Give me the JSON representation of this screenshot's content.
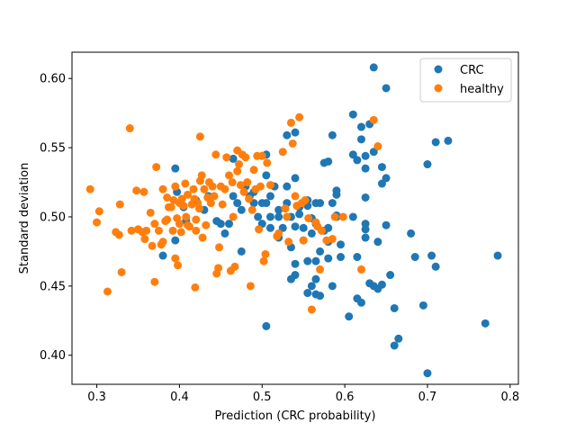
{
  "chart_data": {
    "type": "scatter",
    "title": "",
    "xlabel": "Prediction (CRC probability)",
    "ylabel": "Standard deviation",
    "xlim": [
      0.27,
      0.81
    ],
    "ylim": [
      0.379,
      0.619
    ],
    "x_ticks": [
      0.3,
      0.4,
      0.5,
      0.6,
      0.7,
      0.8
    ],
    "y_ticks": [
      0.4,
      0.45,
      0.5,
      0.55,
      0.6
    ],
    "x_tick_labels": [
      "0.3",
      "0.4",
      "0.5",
      "0.6",
      "0.7",
      "0.8"
    ],
    "y_tick_labels": [
      "0.40",
      "0.45",
      "0.50",
      "0.55",
      "0.60"
    ],
    "grid": false,
    "legend_position": "top-right",
    "series": [
      {
        "name": "CRC",
        "color": "#1f77b4",
        "points": [
          [
            0.395,
            0.535
          ],
          [
            0.397,
            0.518
          ],
          [
            0.405,
            0.507
          ],
          [
            0.408,
            0.497
          ],
          [
            0.38,
            0.472
          ],
          [
            0.395,
            0.483
          ],
          [
            0.42,
            0.512
          ],
          [
            0.43,
            0.505
          ],
          [
            0.435,
            0.515
          ],
          [
            0.45,
            0.495
          ],
          [
            0.445,
            0.497
          ],
          [
            0.455,
            0.488
          ],
          [
            0.46,
            0.495
          ],
          [
            0.465,
            0.515
          ],
          [
            0.465,
            0.542
          ],
          [
            0.47,
            0.51
          ],
          [
            0.475,
            0.475
          ],
          [
            0.475,
            0.505
          ],
          [
            0.48,
            0.522
          ],
          [
            0.485,
            0.515
          ],
          [
            0.49,
            0.518
          ],
          [
            0.49,
            0.51
          ],
          [
            0.495,
            0.5
          ],
          [
            0.5,
            0.495
          ],
          [
            0.5,
            0.51
          ],
          [
            0.505,
            0.545
          ],
          [
            0.505,
            0.51
          ],
          [
            0.505,
            0.53
          ],
          [
            0.51,
            0.5
          ],
          [
            0.51,
            0.492
          ],
          [
            0.51,
            0.515
          ],
          [
            0.515,
            0.522
          ],
          [
            0.52,
            0.505
          ],
          [
            0.52,
            0.485
          ],
          [
            0.52,
            0.5
          ],
          [
            0.525,
            0.492
          ],
          [
            0.53,
            0.51
          ],
          [
            0.53,
            0.522
          ],
          [
            0.53,
            0.559
          ],
          [
            0.535,
            0.5
          ],
          [
            0.535,
            0.478
          ],
          [
            0.54,
            0.561
          ],
          [
            0.54,
            0.466
          ],
          [
            0.54,
            0.458
          ],
          [
            0.54,
            0.528
          ],
          [
            0.54,
            0.493
          ],
          [
            0.545,
            0.507
          ],
          [
            0.545,
            0.502
          ],
          [
            0.55,
            0.492
          ],
          [
            0.55,
            0.483
          ],
          [
            0.555,
            0.508
          ],
          [
            0.555,
            0.512
          ],
          [
            0.555,
            0.468
          ],
          [
            0.555,
            0.445
          ],
          [
            0.56,
            0.45
          ],
          [
            0.56,
            0.488
          ],
          [
            0.565,
            0.495
          ],
          [
            0.565,
            0.51
          ],
          [
            0.565,
            0.468
          ],
          [
            0.565,
            0.455
          ],
          [
            0.565,
            0.444
          ],
          [
            0.57,
            0.443
          ],
          [
            0.57,
            0.475
          ],
          [
            0.57,
            0.51
          ],
          [
            0.575,
            0.49
          ],
          [
            0.575,
            0.539
          ],
          [
            0.58,
            0.54
          ],
          [
            0.58,
            0.492
          ],
          [
            0.58,
            0.482
          ],
          [
            0.58,
            0.47
          ],
          [
            0.585,
            0.559
          ],
          [
            0.585,
            0.45
          ],
          [
            0.585,
            0.51
          ],
          [
            0.59,
            0.519
          ],
          [
            0.59,
            0.5
          ],
          [
            0.59,
            0.501
          ],
          [
            0.59,
            0.516
          ],
          [
            0.595,
            0.471
          ],
          [
            0.595,
            0.48
          ],
          [
            0.605,
            0.428
          ],
          [
            0.61,
            0.574
          ],
          [
            0.61,
            0.545
          ],
          [
            0.61,
            0.5
          ],
          [
            0.615,
            0.441
          ],
          [
            0.615,
            0.471
          ],
          [
            0.615,
            0.541
          ],
          [
            0.62,
            0.565
          ],
          [
            0.62,
            0.556
          ],
          [
            0.62,
            0.438
          ],
          [
            0.625,
            0.535
          ],
          [
            0.625,
            0.495
          ],
          [
            0.625,
            0.491
          ],
          [
            0.625,
            0.485
          ],
          [
            0.625,
            0.514
          ],
          [
            0.625,
            0.544
          ],
          [
            0.63,
            0.567
          ],
          [
            0.63,
            0.452
          ],
          [
            0.635,
            0.608
          ],
          [
            0.635,
            0.547
          ],
          [
            0.635,
            0.45
          ],
          [
            0.64,
            0.482
          ],
          [
            0.64,
            0.448
          ],
          [
            0.645,
            0.536
          ],
          [
            0.645,
            0.524
          ],
          [
            0.645,
            0.451
          ],
          [
            0.65,
            0.593
          ],
          [
            0.65,
            0.528
          ],
          [
            0.65,
            0.494
          ],
          [
            0.655,
            0.458
          ],
          [
            0.66,
            0.407
          ],
          [
            0.66,
            0.434
          ],
          [
            0.665,
            0.412
          ],
          [
            0.68,
            0.488
          ],
          [
            0.685,
            0.471
          ],
          [
            0.695,
            0.436
          ],
          [
            0.7,
            0.387
          ],
          [
            0.7,
            0.538
          ],
          [
            0.705,
            0.472
          ],
          [
            0.71,
            0.554
          ],
          [
            0.71,
            0.464
          ],
          [
            0.725,
            0.555
          ],
          [
            0.77,
            0.423
          ],
          [
            0.785,
            0.472
          ],
          [
            0.505,
            0.421
          ],
          [
            0.535,
            0.455
          ],
          [
            0.56,
            0.499
          ]
        ]
      },
      {
        "name": "healthy",
        "color": "#ff7f0e",
        "points": [
          [
            0.292,
            0.52
          ],
          [
            0.3,
            0.496
          ],
          [
            0.303,
            0.504
          ],
          [
            0.313,
            0.446
          ],
          [
            0.323,
            0.489
          ],
          [
            0.327,
            0.487
          ],
          [
            0.328,
            0.509
          ],
          [
            0.33,
            0.46
          ],
          [
            0.34,
            0.564
          ],
          [
            0.342,
            0.49
          ],
          [
            0.348,
            0.519
          ],
          [
            0.35,
            0.491
          ],
          [
            0.355,
            0.489
          ],
          [
            0.357,
            0.518
          ],
          [
            0.358,
            0.484
          ],
          [
            0.36,
            0.49
          ],
          [
            0.365,
            0.503
          ],
          [
            0.367,
            0.479
          ],
          [
            0.37,
            0.495
          ],
          [
            0.37,
            0.453
          ],
          [
            0.372,
            0.536
          ],
          [
            0.375,
            0.49
          ],
          [
            0.378,
            0.48
          ],
          [
            0.38,
            0.482
          ],
          [
            0.38,
            0.52
          ],
          [
            0.383,
            0.497
          ],
          [
            0.385,
            0.514
          ],
          [
            0.385,
            0.498
          ],
          [
            0.387,
            0.507
          ],
          [
            0.39,
            0.507
          ],
          [
            0.392,
            0.49
          ],
          [
            0.393,
            0.512
          ],
          [
            0.395,
            0.522
          ],
          [
            0.395,
            0.47
          ],
          [
            0.397,
            0.499
          ],
          [
            0.398,
            0.465
          ],
          [
            0.4,
            0.51
          ],
          [
            0.4,
            0.495
          ],
          [
            0.402,
            0.489
          ],
          [
            0.403,
            0.513
          ],
          [
            0.405,
            0.508
          ],
          [
            0.407,
            0.524
          ],
          [
            0.408,
            0.5
          ],
          [
            0.41,
            0.494
          ],
          [
            0.41,
            0.516
          ],
          [
            0.412,
            0.493
          ],
          [
            0.415,
            0.509
          ],
          [
            0.417,
            0.52
          ],
          [
            0.418,
            0.513
          ],
          [
            0.419,
            0.449
          ],
          [
            0.42,
            0.498
          ],
          [
            0.42,
            0.49
          ],
          [
            0.422,
            0.51
          ],
          [
            0.424,
            0.506
          ],
          [
            0.425,
            0.526
          ],
          [
            0.425,
            0.558
          ],
          [
            0.427,
            0.53
          ],
          [
            0.428,
            0.485
          ],
          [
            0.43,
            0.52
          ],
          [
            0.432,
            0.494
          ],
          [
            0.434,
            0.514
          ],
          [
            0.436,
            0.525
          ],
          [
            0.438,
            0.51
          ],
          [
            0.44,
            0.522
          ],
          [
            0.442,
            0.515
          ],
          [
            0.444,
            0.545
          ],
          [
            0.445,
            0.459
          ],
          [
            0.447,
            0.463
          ],
          [
            0.448,
            0.478
          ],
          [
            0.45,
            0.522
          ],
          [
            0.452,
            0.509
          ],
          [
            0.455,
            0.52
          ],
          [
            0.457,
            0.543
          ],
          [
            0.46,
            0.53
          ],
          [
            0.462,
            0.461
          ],
          [
            0.464,
            0.525
          ],
          [
            0.465,
            0.5
          ],
          [
            0.467,
            0.464
          ],
          [
            0.47,
            0.533
          ],
          [
            0.47,
            0.548
          ],
          [
            0.472,
            0.538
          ],
          [
            0.474,
            0.523
          ],
          [
            0.476,
            0.545
          ],
          [
            0.478,
            0.518
          ],
          [
            0.48,
            0.543
          ],
          [
            0.482,
            0.525
          ],
          [
            0.484,
            0.513
          ],
          [
            0.486,
            0.45
          ],
          [
            0.488,
            0.505
          ],
          [
            0.49,
            0.534
          ],
          [
            0.492,
            0.52
          ],
          [
            0.494,
            0.544
          ],
          [
            0.496,
            0.491
          ],
          [
            0.498,
            0.522
          ],
          [
            0.5,
            0.544
          ],
          [
            0.502,
            0.468
          ],
          [
            0.504,
            0.473
          ],
          [
            0.506,
            0.539
          ],
          [
            0.51,
            0.523
          ],
          [
            0.518,
            0.486
          ],
          [
            0.52,
            0.488
          ],
          [
            0.525,
            0.547
          ],
          [
            0.528,
            0.506
          ],
          [
            0.53,
            0.5
          ],
          [
            0.532,
            0.482
          ],
          [
            0.535,
            0.568
          ],
          [
            0.537,
            0.553
          ],
          [
            0.54,
            0.515
          ],
          [
            0.542,
            0.508
          ],
          [
            0.545,
            0.572
          ],
          [
            0.548,
            0.51
          ],
          [
            0.55,
            0.483
          ],
          [
            0.552,
            0.512
          ],
          [
            0.556,
            0.499
          ],
          [
            0.56,
            0.433
          ],
          [
            0.565,
            0.496
          ],
          [
            0.567,
            0.493
          ],
          [
            0.57,
            0.462
          ],
          [
            0.572,
            0.49
          ],
          [
            0.578,
            0.483
          ],
          [
            0.585,
            0.484
          ],
          [
            0.588,
            0.5
          ],
          [
            0.62,
            0.462
          ],
          [
            0.635,
            0.57
          ],
          [
            0.64,
            0.551
          ],
          [
            0.598,
            0.5
          ]
        ]
      }
    ]
  }
}
